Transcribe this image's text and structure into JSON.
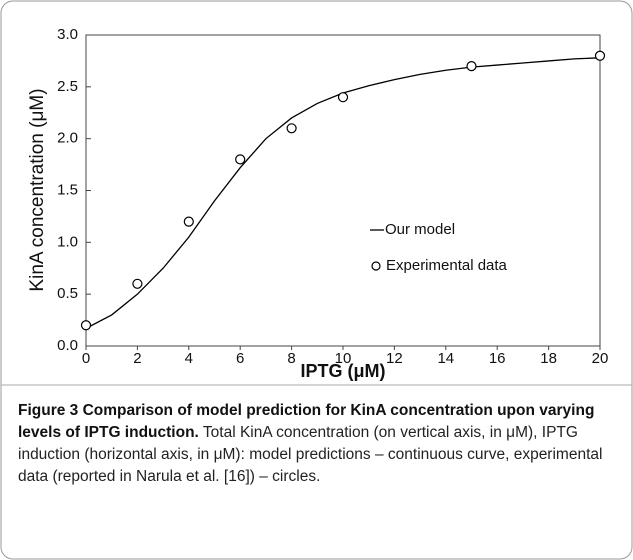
{
  "chart_data": {
    "type": "line",
    "xlabel": "IPTG (μM)",
    "ylabel": "KinA concentration (μM)",
    "xlim": [
      0,
      20
    ],
    "xticks": [
      0,
      2,
      4,
      6,
      8,
      10,
      12,
      14,
      16,
      18,
      20
    ],
    "ylim": [
      0,
      3
    ],
    "yticks": [
      {
        "value": 0,
        "label": "0.0"
      },
      {
        "value": 0.5,
        "label": "0.5"
      },
      {
        "value": 1,
        "label": "1.0"
      },
      {
        "value": 1.5,
        "label": "1.5"
      },
      {
        "value": 2,
        "label": "2.0"
      },
      {
        "value": 2.5,
        "label": "2.5"
      },
      {
        "value": 3,
        "label": "3.0"
      }
    ],
    "series": [
      {
        "name": "Our model",
        "color": "#000000",
        "marker": "none",
        "x": [
          0,
          1,
          2,
          3,
          4,
          5,
          6,
          7,
          8,
          9,
          10,
          11,
          12,
          13,
          14,
          15,
          16,
          17,
          18,
          19,
          20
        ],
        "values": [
          0.17,
          0.3,
          0.5,
          0.75,
          1.05,
          1.4,
          1.72,
          2.0,
          2.2,
          2.34,
          2.44,
          2.51,
          2.57,
          2.62,
          2.66,
          2.69,
          2.71,
          2.73,
          2.75,
          2.77,
          2.78
        ]
      },
      {
        "name": "Experimental data",
        "color": "#000000",
        "marker": "open-circle",
        "x": [
          0,
          2,
          4,
          6,
          8,
          10,
          15,
          20
        ],
        "values": [
          0.2,
          0.6,
          1.2,
          1.8,
          2.1,
          2.4,
          2.7,
          2.8
        ]
      }
    ]
  },
  "caption": {
    "title": "Figure 3 Comparison of model prediction for KinA concentration upon varying levels of IPTG induction.",
    "text": "Total KinA concentration (on vertical axis, in μM), IPTG induction (horizontal axis, in μM): model predictions – continuous curve, experimental data (reported in Narula et al. [16]) – circles."
  }
}
